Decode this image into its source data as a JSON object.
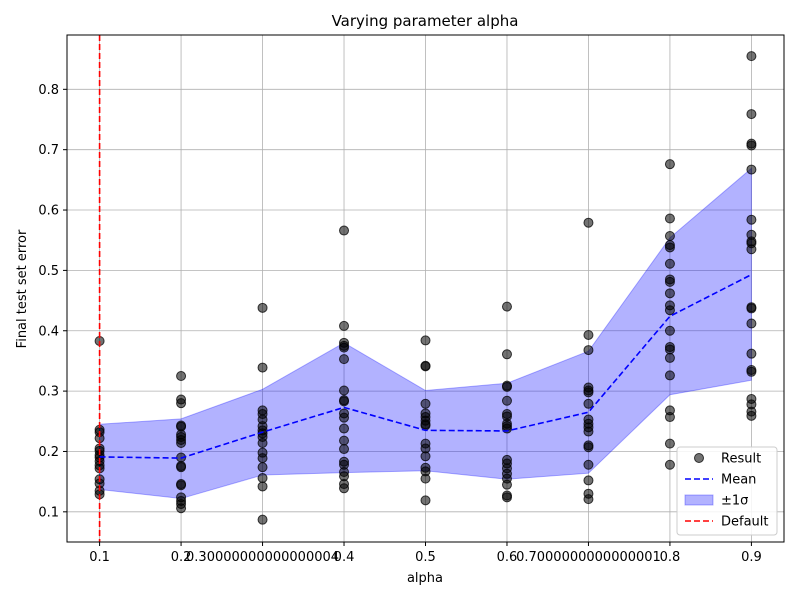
{
  "chart_data": {
    "type": "scatter",
    "title": "Varying parameter alpha",
    "xlabel": "alpha",
    "ylabel": "Final test set error",
    "xlim": [
      0.06,
      0.94
    ],
    "ylim": [
      0.05,
      0.89
    ],
    "x_ticks": [
      0.1,
      0.2,
      0.30000000000000004,
      0.4,
      0.5,
      0.6,
      0.7000000000000001,
      0.8,
      0.9
    ],
    "x_tick_labels": [
      "0.1",
      "0.2",
      "0.30000000000000004",
      "0.4",
      "0.5",
      "0.6",
      "0.7000000000000001",
      "0.8",
      "0.9"
    ],
    "y_ticks": [
      0.1,
      0.2,
      0.3,
      0.4,
      0.5,
      0.6,
      0.7,
      0.8
    ],
    "y_tick_labels": [
      "0.1",
      "0.2",
      "0.3",
      "0.4",
      "0.5",
      "0.6",
      "0.7",
      "0.8"
    ],
    "grid": true,
    "legend_position": "lower-right",
    "default_alpha": 0.1,
    "legend": [
      {
        "key": "result",
        "label": "Result"
      },
      {
        "key": "mean",
        "label": "Mean"
      },
      {
        "key": "band",
        "label": "±1σ"
      },
      {
        "key": "default",
        "label": "Default"
      }
    ],
    "colors": {
      "points": "#000000",
      "mean": "#0000ff",
      "band": "#0000ff",
      "default": "#ff0000",
      "grid": "#b0b0b0"
    },
    "mean": {
      "x": [
        0.1,
        0.2,
        0.3,
        0.4,
        0.5,
        0.6,
        0.7,
        0.8,
        0.9
      ],
      "y": [
        0.191,
        0.189,
        0.232,
        0.273,
        0.235,
        0.234,
        0.265,
        0.424,
        0.493
      ]
    },
    "band": {
      "x": [
        0.1,
        0.2,
        0.3,
        0.4,
        0.5,
        0.6,
        0.7,
        0.8,
        0.9
      ],
      "lower": [
        0.137,
        0.122,
        0.161,
        0.165,
        0.168,
        0.154,
        0.164,
        0.294,
        0.318
      ],
      "upper": [
        0.245,
        0.254,
        0.303,
        0.38,
        0.301,
        0.313,
        0.366,
        0.554,
        0.669
      ]
    },
    "points": [
      {
        "x": 0.1,
        "y": [
          0.383,
          0.236,
          0.232,
          0.222,
          0.205,
          0.201,
          0.194,
          0.19,
          0.184,
          0.177,
          0.172,
          0.154,
          0.147,
          0.135,
          0.129
        ]
      },
      {
        "x": 0.2,
        "y": [
          0.325,
          0.286,
          0.28,
          0.243,
          0.241,
          0.228,
          0.224,
          0.219,
          0.214,
          0.19,
          0.176,
          0.174,
          0.146,
          0.144,
          0.124,
          0.118,
          0.113,
          0.106
        ]
      },
      {
        "x": 0.3,
        "y": [
          0.438,
          0.339,
          0.268,
          0.262,
          0.253,
          0.242,
          0.235,
          0.23,
          0.224,
          0.214,
          0.198,
          0.189,
          0.174,
          0.156,
          0.142,
          0.087
        ]
      },
      {
        "x": 0.4,
        "y": [
          0.566,
          0.408,
          0.38,
          0.375,
          0.372,
          0.353,
          0.301,
          0.285,
          0.283,
          0.263,
          0.256,
          0.238,
          0.218,
          0.204,
          0.183,
          0.178,
          0.166,
          0.159,
          0.146,
          0.139
        ]
      },
      {
        "x": 0.5,
        "y": [
          0.384,
          0.342,
          0.341,
          0.279,
          0.263,
          0.257,
          0.251,
          0.245,
          0.243,
          0.213,
          0.205,
          0.192,
          0.173,
          0.167,
          0.155,
          0.119
        ]
      },
      {
        "x": 0.6,
        "y": [
          0.44,
          0.361,
          0.309,
          0.307,
          0.284,
          0.262,
          0.258,
          0.246,
          0.242,
          0.238,
          0.186,
          0.18,
          0.172,
          0.163,
          0.155,
          0.145,
          0.127,
          0.124
        ]
      },
      {
        "x": 0.7,
        "y": [
          0.579,
          0.393,
          0.368,
          0.306,
          0.301,
          0.298,
          0.279,
          0.253,
          0.246,
          0.24,
          0.233,
          0.21,
          0.207,
          0.178,
          0.152,
          0.13,
          0.121
        ]
      },
      {
        "x": 0.8,
        "y": [
          0.676,
          0.586,
          0.557,
          0.542,
          0.538,
          0.511,
          0.485,
          0.481,
          0.462,
          0.442,
          0.434,
          0.4,
          0.373,
          0.369,
          0.355,
          0.326,
          0.268,
          0.257,
          0.213,
          0.178
        ]
      },
      {
        "x": 0.9,
        "y": [
          0.855,
          0.759,
          0.71,
          0.707,
          0.667,
          0.584,
          0.559,
          0.548,
          0.545,
          0.535,
          0.439,
          0.437,
          0.412,
          0.362,
          0.335,
          0.332,
          0.287,
          0.278,
          0.266,
          0.259
        ]
      }
    ]
  }
}
